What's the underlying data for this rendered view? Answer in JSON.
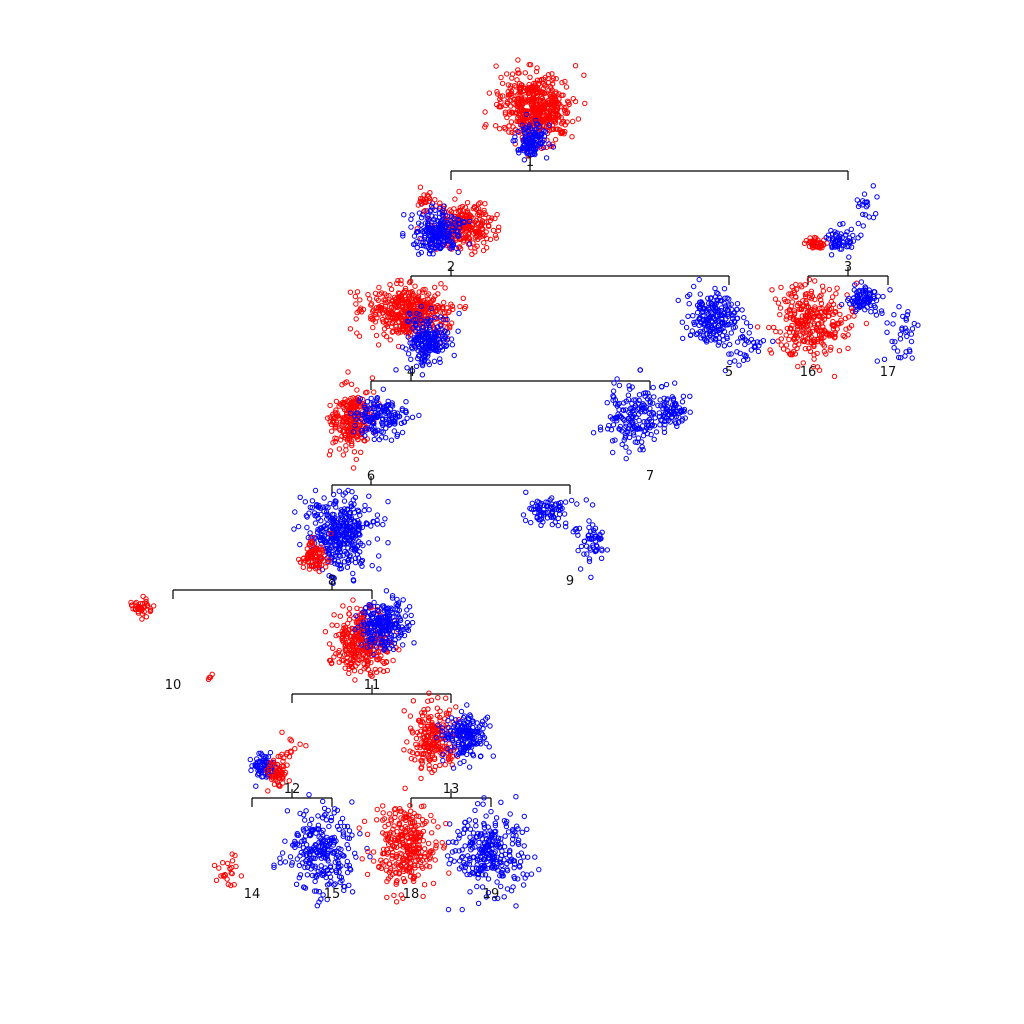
{
  "colors": {
    "class_a": "#ff0000",
    "class_b": "#0000ff",
    "edge": "#000000"
  },
  "tree": {
    "nodes": [
      {
        "id": "1",
        "label": "1",
        "children": [
          "2",
          "3"
        ]
      },
      {
        "id": "2",
        "label": "2",
        "children": [
          "4",
          "5"
        ]
      },
      {
        "id": "3",
        "label": "3",
        "children": [
          "16",
          "17"
        ]
      },
      {
        "id": "4",
        "label": "4",
        "children": [
          "6",
          "7"
        ]
      },
      {
        "id": "5",
        "label": "5",
        "children": []
      },
      {
        "id": "6",
        "label": "6",
        "children": [
          "8",
          "9"
        ]
      },
      {
        "id": "7",
        "label": "7",
        "children": []
      },
      {
        "id": "8",
        "label": "8",
        "children": [
          "10",
          "11"
        ]
      },
      {
        "id": "9",
        "label": "9",
        "children": []
      },
      {
        "id": "10",
        "label": "10",
        "children": []
      },
      {
        "id": "11",
        "label": "11",
        "children": [
          "12",
          "13"
        ]
      },
      {
        "id": "12",
        "label": "12",
        "children": [
          "14",
          "15"
        ]
      },
      {
        "id": "13",
        "label": "13",
        "children": [
          "18",
          "19"
        ]
      },
      {
        "id": "14",
        "label": "14",
        "children": []
      },
      {
        "id": "15",
        "label": "15",
        "children": []
      },
      {
        "id": "16",
        "label": "16",
        "children": []
      },
      {
        "id": "17",
        "label": "17",
        "children": []
      },
      {
        "id": "18",
        "label": "18",
        "children": []
      },
      {
        "id": "19",
        "label": "19",
        "children": []
      }
    ]
  }
}
